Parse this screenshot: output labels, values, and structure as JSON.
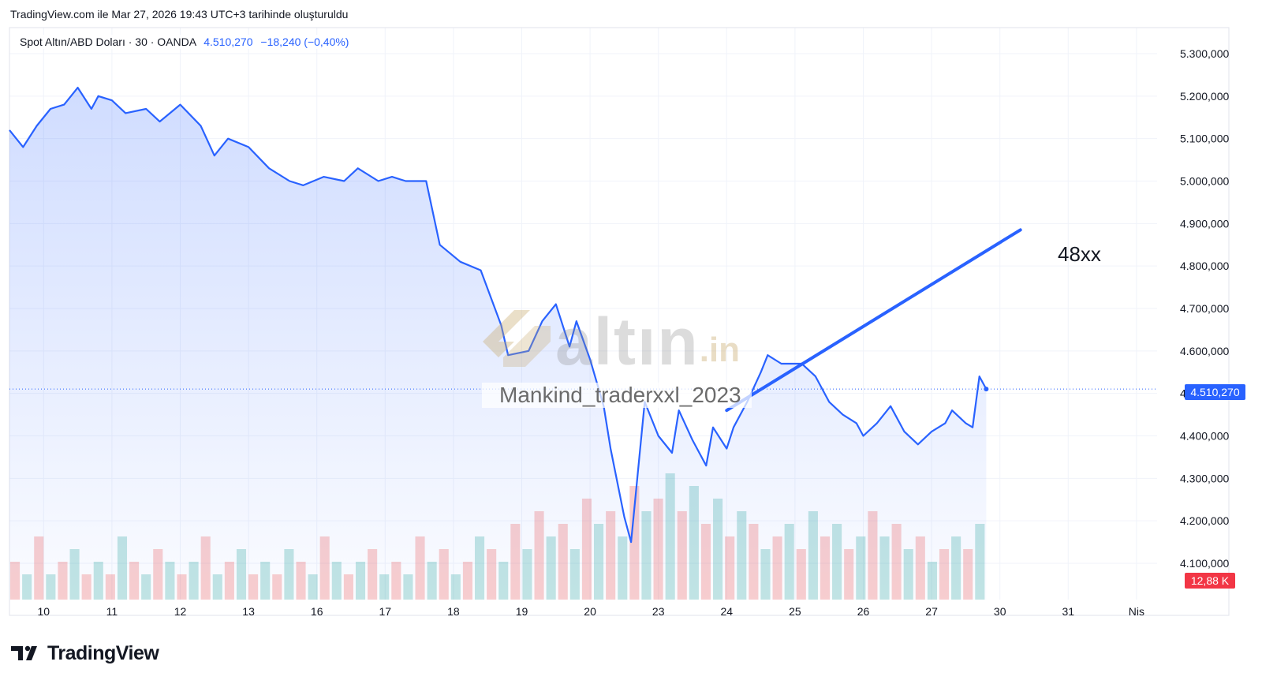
{
  "header": {
    "caption": "TradingView.com ile Mar 27, 2026 19:43 UTC+3 tarihinde oluşturuldu"
  },
  "legend": {
    "symbol": "Spot Altın/ABD Doları · 30 · OANDA",
    "last": "4.510,270",
    "change": "−18,240 (−0,40%)"
  },
  "price_label": "4.510,270",
  "volume_label": "12,88 K",
  "annotation": "48xx",
  "watermark": {
    "logo_word": "altın",
    "logo_tld": ".in",
    "text": "Mankind_traderxxl_2023"
  },
  "brand": {
    "name": "TradingView"
  },
  "colors": {
    "line": "#2962ff",
    "vol_up": "#26a69a",
    "vol_down": "#ef5350",
    "price_tag": "#2962ff",
    "volume_tag": "#f23645"
  },
  "chart_data": {
    "type": "area",
    "title": "Spot Altın/ABD Doları · 30 · OANDA",
    "xlabel": "",
    "ylabel": "",
    "ylim": [
      4050000,
      5350000
    ],
    "y_ticks": [
      "5.300,000",
      "5.200,000",
      "5.100,000",
      "5.000,000",
      "4.900,000",
      "4.800,000",
      "4.700,000",
      "4.600,000",
      "4.500,000",
      "4.400,000",
      "4.300,000",
      "4.200,000",
      "4.100,000"
    ],
    "y_tick_values": [
      5300000,
      5200000,
      5100000,
      5000000,
      4900000,
      4800000,
      4700000,
      4600000,
      4500000,
      4400000,
      4300000,
      4200000,
      4100000
    ],
    "x_ticks": [
      "10",
      "11",
      "12",
      "13",
      "16",
      "17",
      "18",
      "19",
      "20",
      "23",
      "24",
      "25",
      "26",
      "27",
      "30",
      "31",
      "Nis"
    ],
    "x_index": [
      0.5,
      1.5,
      2.5,
      3.5,
      4.5,
      5.5,
      6.5,
      7.5,
      8.5,
      9.5,
      10.5,
      11.5,
      12.5,
      13.5,
      14.5,
      15.5,
      16.5
    ],
    "grid": true,
    "series": [
      {
        "x": [
          0.0,
          0.2,
          0.4,
          0.6,
          0.8,
          1.0,
          1.2,
          1.3,
          1.5,
          1.7,
          2.0,
          2.2,
          2.5,
          2.8,
          3.0,
          3.2,
          3.5,
          3.8,
          4.1,
          4.3,
          4.6,
          4.9,
          5.1,
          5.4,
          5.6,
          5.8,
          6.1,
          6.3,
          6.6,
          6.9,
          7.2,
          7.3,
          7.6,
          7.8,
          8.0,
          8.2,
          8.3,
          8.5,
          8.7,
          8.8,
          9.0,
          9.1,
          9.3,
          9.5,
          9.7,
          9.8,
          10.0,
          10.2,
          10.3,
          10.5,
          10.6,
          10.8,
          11.0,
          11.1,
          11.3,
          11.5,
          11.6,
          11.8,
          12.0,
          12.2,
          12.4,
          12.5,
          12.7,
          12.9,
          13.1,
          13.3,
          13.5,
          13.7,
          13.8,
          14.0,
          14.1,
          14.2,
          14.3
        ],
        "y": [
          5120000,
          5080000,
          5130000,
          5170000,
          5180000,
          5220000,
          5170000,
          5200000,
          5190000,
          5160000,
          5170000,
          5140000,
          5180000,
          5130000,
          5060000,
          5100000,
          5080000,
          5030000,
          5000000,
          4990000,
          5010000,
          5000000,
          5030000,
          5000000,
          5010000,
          5000000,
          5000000,
          4850000,
          4810000,
          4790000,
          4660000,
          4590000,
          4600000,
          4670000,
          4710000,
          4610000,
          4670000,
          4580000,
          4470000,
          4370000,
          4210000,
          4150000,
          4480000,
          4400000,
          4360000,
          4460000,
          4390000,
          4330000,
          4420000,
          4370000,
          4420000,
          4480000,
          4550000,
          4590000,
          4570000,
          4570000,
          4570000,
          4540000,
          4480000,
          4450000,
          4430000,
          4400000,
          4430000,
          4470000,
          4410000,
          4380000,
          4410000,
          4430000,
          4460000,
          4430000,
          4420000,
          4540000,
          4510270
        ]
      }
    ],
    "trendline": {
      "x": [
        10.5,
        14.8
      ],
      "y": [
        4460000,
        4885000
      ]
    },
    "current_value": 4510270,
    "volume": {
      "label": "12,88 K",
      "values": [
        3,
        2,
        5,
        2,
        3,
        4,
        2,
        3,
        2,
        5,
        3,
        2,
        4,
        3,
        2,
        3,
        5,
        2,
        3,
        4,
        2,
        3,
        2,
        4,
        3,
        2,
        5,
        3,
        2,
        3,
        4,
        2,
        3,
        2,
        5,
        3,
        4,
        2,
        3,
        5,
        4,
        3,
        6,
        4,
        7,
        5,
        6,
        4,
        8,
        6,
        7,
        5,
        9,
        7,
        8,
        10,
        7,
        9,
        6,
        8,
        5,
        7,
        6,
        4,
        5,
        6,
        4,
        7,
        5,
        6,
        4,
        5,
        7,
        5,
        6,
        4,
        5,
        3,
        4,
        5,
        4,
        6
      ],
      "colors": [
        "d",
        "u",
        "d",
        "u",
        "d",
        "u",
        "d",
        "u",
        "d",
        "u",
        "d",
        "u",
        "d",
        "u",
        "d",
        "u",
        "d",
        "u",
        "d",
        "u",
        "d",
        "u",
        "d",
        "u",
        "d",
        "u",
        "d",
        "u",
        "d",
        "u",
        "d",
        "u",
        "d",
        "u",
        "d",
        "u",
        "d",
        "u",
        "d",
        "u",
        "d",
        "u",
        "d",
        "u",
        "d",
        "u",
        "d",
        "u",
        "d",
        "u",
        "d",
        "u",
        "d",
        "u",
        "d",
        "u",
        "d",
        "u",
        "d",
        "u",
        "d",
        "u",
        "d",
        "u",
        "d",
        "u",
        "d",
        "u",
        "d",
        "u",
        "d",
        "u",
        "d",
        "u",
        "d",
        "u",
        "d",
        "u",
        "d",
        "u",
        "d",
        "u"
      ]
    }
  }
}
